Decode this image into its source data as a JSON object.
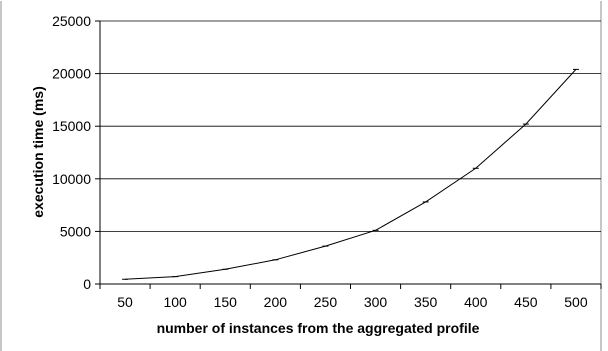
{
  "chart_data": {
    "type": "line",
    "title": "",
    "xlabel": "number of instances from the aggregated profile",
    "ylabel": "execution time (ms)",
    "categories": [
      "50",
      "100",
      "150",
      "200",
      "250",
      "300",
      "350",
      "400",
      "450",
      "500"
    ],
    "y_ticks": [
      "0",
      "5000",
      "10000",
      "15000",
      "20000",
      "25000"
    ],
    "ylim": [
      0,
      25000
    ],
    "grid": true,
    "legend": "none",
    "series": [
      {
        "values": [
          450,
          700,
          1400,
          2300,
          3600,
          5100,
          7800,
          11000,
          15200,
          20400
        ]
      }
    ],
    "colors": {
      "line": "#000000",
      "grid": "#000000",
      "frame": "#8f8f8f",
      "background": "#ffffff"
    }
  }
}
